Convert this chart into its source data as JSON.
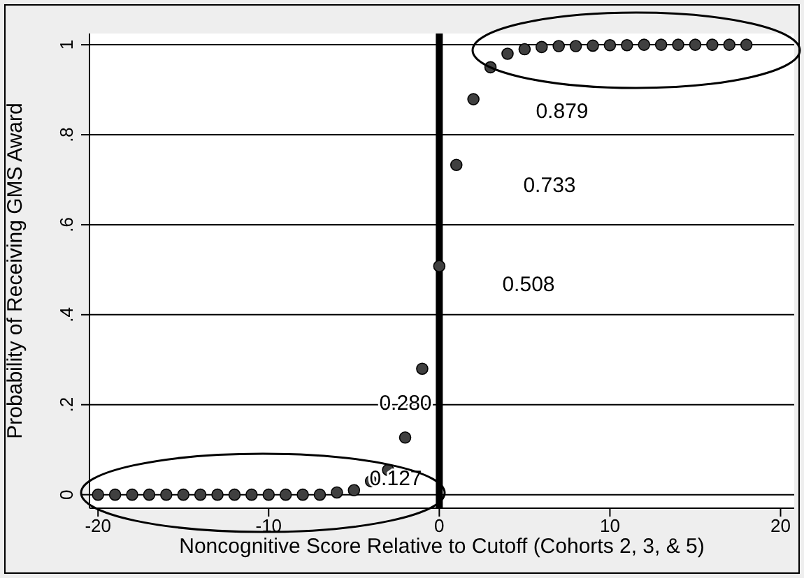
{
  "chart_data": {
    "type": "scatter",
    "xlabel": "Noncognitive Score Relative to Cutoff (Cohorts 2, 3, & 5)",
    "ylabel": "Probability of Receiving GMS Award",
    "x": [
      -20,
      -19,
      -18,
      -17,
      -16,
      -15,
      -14,
      -13,
      -12,
      -11,
      -10,
      -9,
      -8,
      -7,
      -6,
      -5,
      -4,
      -3,
      -2,
      -1,
      0,
      1,
      2,
      3,
      4,
      5,
      6,
      7,
      8,
      9,
      10,
      11,
      12,
      13,
      14,
      15,
      16,
      17,
      18
    ],
    "series": [
      {
        "color": "#404040",
        "values": [
          0,
          0,
          0,
          0,
          0,
          0,
          0,
          0,
          0,
          0,
          0,
          0,
          0,
          0,
          0.005,
          0.01,
          0.03,
          0.055,
          0.127,
          0.28,
          0.508,
          0.733,
          0.879,
          0.95,
          0.98,
          0.99,
          0.995,
          0.997,
          0.997,
          0.998,
          0.999,
          0.999,
          1,
          1,
          1,
          1,
          1,
          1,
          1
        ]
      }
    ],
    "xlim": [
      -20.5,
      20.8
    ],
    "xticks": [
      -20,
      -10,
      0,
      10,
      20
    ],
    "ylim": [
      -0.03,
      1.025
    ],
    "yticks": [
      0,
      {
        "value": 0.2,
        "label": ".2"
      },
      {
        "value": 0.4,
        "label": ".4"
      },
      {
        "value": 0.6,
        "label": ".6"
      },
      {
        "value": 0.8,
        "label": ".8"
      },
      1
    ],
    "grid": "y",
    "marker": "circle",
    "legend": false,
    "ref_lines": [
      {
        "axis": "x",
        "value": 0,
        "color": "#000000"
      }
    ],
    "annotations": [
      "0.879",
      "0.733",
      "0.508",
      "0.280",
      "0.127"
    ]
  }
}
